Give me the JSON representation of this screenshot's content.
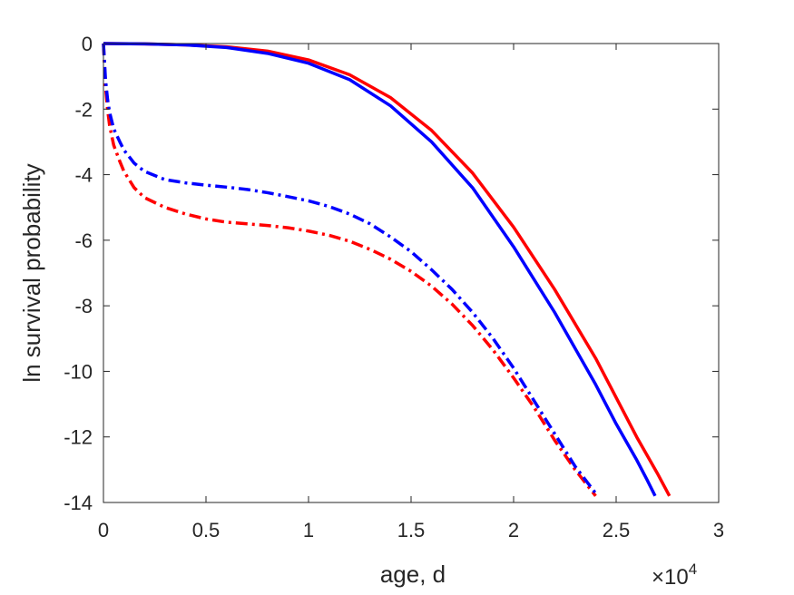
{
  "chart_data": {
    "type": "line",
    "title": "",
    "xlabel": "age, d",
    "ylabel": "ln survival probability",
    "x_exponent_label": {
      "base": "×10",
      "power": "4"
    },
    "xlim": [
      0,
      30000
    ],
    "ylim": [
      -14,
      0
    ],
    "xticks": [
      0,
      5000,
      10000,
      15000,
      20000,
      25000,
      30000
    ],
    "xtick_labels": [
      "0",
      "0.5",
      "1",
      "1.5",
      "2",
      "2.5",
      "3"
    ],
    "yticks": [
      0,
      -2,
      -4,
      -6,
      -8,
      -10,
      -12,
      -14
    ],
    "ytick_labels": [
      "0",
      "-2",
      "-4",
      "-6",
      "-8",
      "-10",
      "-12",
      "-14"
    ],
    "grid": false,
    "box": true,
    "series": [
      {
        "color": "#ff0000",
        "line_style": "solid",
        "x": [
          0,
          2000,
          4000,
          6000,
          8000,
          10000,
          12000,
          14000,
          16000,
          18000,
          20000,
          22000,
          24000,
          26000,
          27000,
          27600
        ],
        "y": [
          0,
          -0.01,
          -0.04,
          -0.1,
          -0.23,
          -0.5,
          -0.95,
          -1.65,
          -2.65,
          -3.95,
          -5.6,
          -7.5,
          -9.6,
          -12.0,
          -13.1,
          -13.8
        ]
      },
      {
        "color": "#0000ff",
        "line_style": "solid",
        "x": [
          0,
          2000,
          4000,
          6000,
          8000,
          10000,
          12000,
          14000,
          16000,
          18000,
          20000,
          22000,
          24000,
          25000,
          26000,
          26500,
          26900
        ],
        "y": [
          0,
          -0.01,
          -0.04,
          -0.12,
          -0.3,
          -0.6,
          -1.1,
          -1.9,
          -3.0,
          -4.4,
          -6.2,
          -8.2,
          -10.4,
          -11.6,
          -12.7,
          -13.3,
          -13.8
        ]
      },
      {
        "color": "#ff0000",
        "line_style": "dashdot",
        "x": [
          0,
          100,
          200,
          300,
          500,
          800,
          1000,
          1500,
          2000,
          3000,
          4000,
          5000,
          6000,
          7000,
          8000,
          9000,
          10000,
          11000,
          12000,
          13000,
          14000,
          15000,
          16000,
          17000,
          18000,
          19000,
          20000,
          21000,
          22000,
          23000,
          24000
        ],
        "y": [
          0,
          -1.3,
          -2.0,
          -2.5,
          -3.1,
          -3.6,
          -3.9,
          -4.4,
          -4.7,
          -5.0,
          -5.2,
          -5.35,
          -5.45,
          -5.5,
          -5.55,
          -5.62,
          -5.72,
          -5.85,
          -6.03,
          -6.28,
          -6.58,
          -6.95,
          -7.4,
          -7.95,
          -8.6,
          -9.35,
          -10.2,
          -11.1,
          -12.1,
          -13.0,
          -13.8
        ]
      },
      {
        "color": "#0000ff",
        "line_style": "dashdot",
        "x": [
          0,
          100,
          200,
          300,
          500,
          800,
          1000,
          1500,
          2000,
          3000,
          4000,
          5000,
          6000,
          7000,
          8000,
          9000,
          10000,
          11000,
          12000,
          13000,
          14000,
          15000,
          16000,
          17000,
          18000,
          19000,
          20000,
          21000,
          22000,
          23000,
          24100
        ],
        "y": [
          0,
          -1.1,
          -1.7,
          -2.1,
          -2.6,
          -3.0,
          -3.25,
          -3.65,
          -3.9,
          -4.15,
          -4.25,
          -4.32,
          -4.38,
          -4.45,
          -4.55,
          -4.67,
          -4.8,
          -4.97,
          -5.2,
          -5.5,
          -5.9,
          -6.35,
          -6.9,
          -7.5,
          -8.2,
          -9.0,
          -9.9,
          -10.9,
          -11.9,
          -12.9,
          -13.8
        ]
      }
    ]
  }
}
